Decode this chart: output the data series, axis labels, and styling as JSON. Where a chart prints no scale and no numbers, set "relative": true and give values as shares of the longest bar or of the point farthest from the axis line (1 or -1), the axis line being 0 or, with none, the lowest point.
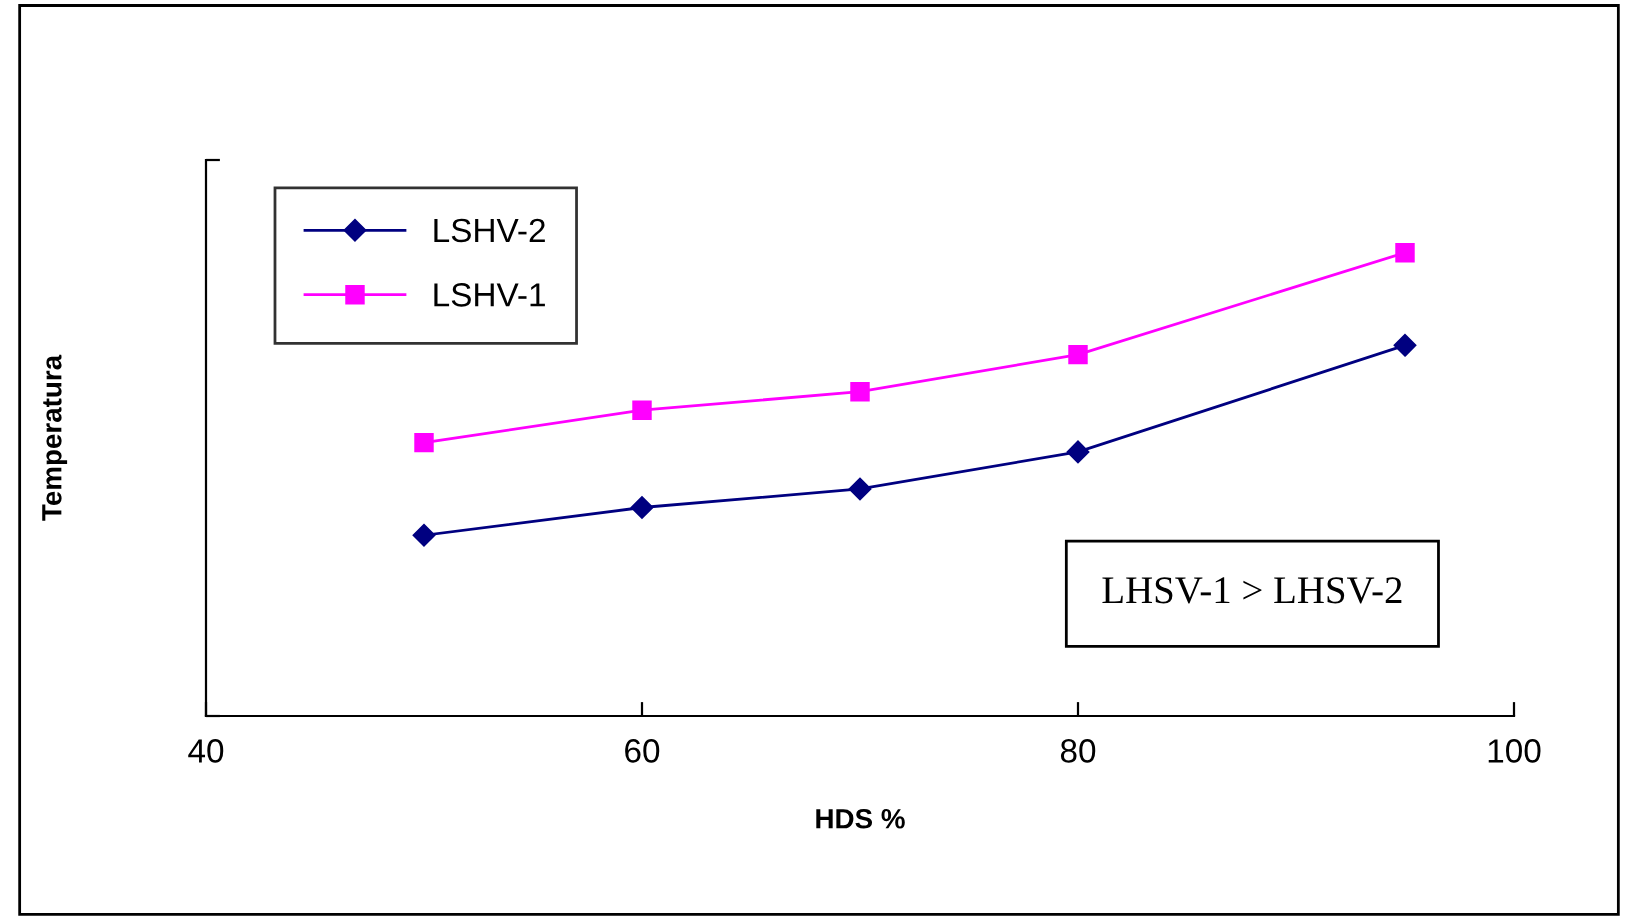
{
  "chart_data": {
    "type": "line",
    "relative": true,
    "xlabel": "HDS %",
    "ylabel": "Temperatura",
    "x": [
      50,
      60,
      70,
      80,
      95
    ],
    "xlim": [
      40,
      100
    ],
    "xticks": [
      40,
      60,
      80,
      100
    ],
    "series": [
      {
        "name": "LSHV-2",
        "color": "#000080",
        "marker": "diamond",
        "values": [
          0.39,
          0.45,
          0.49,
          0.57,
          0.8
        ]
      },
      {
        "name": "LSHV-1",
        "color": "#ff00ff",
        "marker": "square",
        "values": [
          0.59,
          0.66,
          0.7,
          0.78,
          1.0
        ]
      }
    ],
    "annotations": [
      "LHSV-1 > LHSV-2"
    ],
    "legend": "top left",
    "grid": false
  }
}
